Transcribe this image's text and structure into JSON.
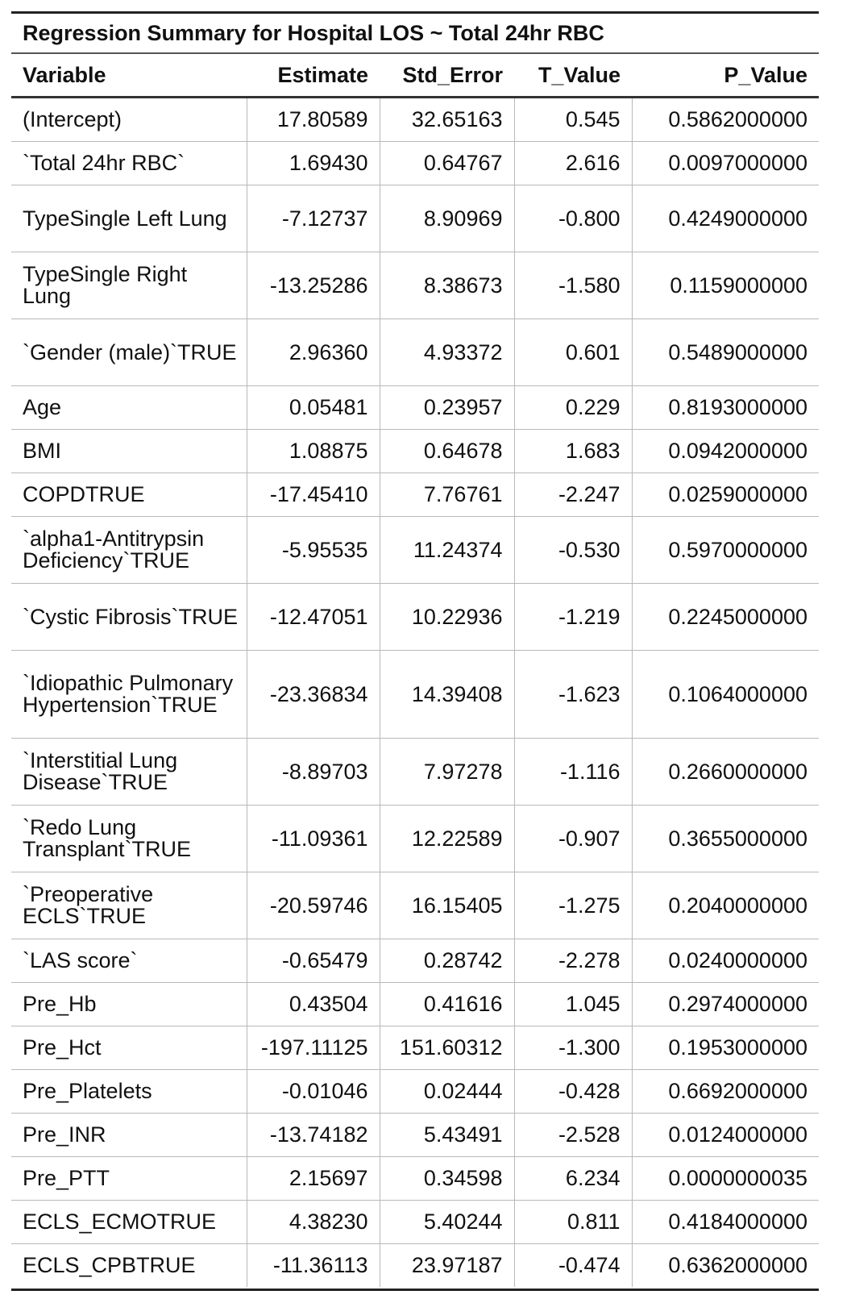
{
  "title": "Regression Summary for Hospital LOS ~ Total 24hr RBC",
  "columns": [
    "Variable",
    "Estimate",
    "Std_Error",
    "T_Value",
    "P_Value"
  ],
  "rows": [
    {
      "variable": "(Intercept)",
      "estimate": "17.80589",
      "std_error": "32.65163",
      "t_value": "0.545",
      "p_value": "0.5862000000"
    },
    {
      "variable": "`Total 24hr RBC`",
      "estimate": "1.69430",
      "std_error": "0.64767",
      "t_value": "2.616",
      "p_value": "0.0097000000"
    },
    {
      "variable": "TypeSingle Left Lung",
      "estimate": "-7.12737",
      "std_error": "8.90969",
      "t_value": "-0.800",
      "p_value": "0.4249000000"
    },
    {
      "variable": "TypeSingle Right Lung",
      "estimate": "-13.25286",
      "std_error": "8.38673",
      "t_value": "-1.580",
      "p_value": "0.1159000000"
    },
    {
      "variable": "`Gender (male)`TRUE",
      "estimate": "2.96360",
      "std_error": "4.93372",
      "t_value": "0.601",
      "p_value": "0.5489000000"
    },
    {
      "variable": "Age",
      "estimate": "0.05481",
      "std_error": "0.23957",
      "t_value": "0.229",
      "p_value": "0.8193000000"
    },
    {
      "variable": "BMI",
      "estimate": "1.08875",
      "std_error": "0.64678",
      "t_value": "1.683",
      "p_value": "0.0942000000"
    },
    {
      "variable": "COPDTRUE",
      "estimate": "-17.45410",
      "std_error": "7.76761",
      "t_value": "-2.247",
      "p_value": "0.0259000000"
    },
    {
      "variable": "`alpha1-Antitrypsin Deficiency`TRUE",
      "estimate": "-5.95535",
      "std_error": "11.24374",
      "t_value": "-0.530",
      "p_value": "0.5970000000"
    },
    {
      "variable": "`Cystic Fibrosis`TRUE",
      "estimate": "-12.47051",
      "std_error": "10.22936",
      "t_value": "-1.219",
      "p_value": "0.2245000000"
    },
    {
      "variable": "`Idiopathic Pulmonary Hypertension`TRUE",
      "estimate": "-23.36834",
      "std_error": "14.39408",
      "t_value": "-1.623",
      "p_value": "0.1064000000"
    },
    {
      "variable": "`Interstitial Lung Disease`TRUE",
      "estimate": "-8.89703",
      "std_error": "7.97278",
      "t_value": "-1.116",
      "p_value": "0.2660000000"
    },
    {
      "variable": "`Redo Lung Transplant`TRUE",
      "estimate": "-11.09361",
      "std_error": "12.22589",
      "t_value": "-0.907",
      "p_value": "0.3655000000"
    },
    {
      "variable": "`Preoperative ECLS`TRUE",
      "estimate": "-20.59746",
      "std_error": "16.15405",
      "t_value": "-1.275",
      "p_value": "0.2040000000"
    },
    {
      "variable": "`LAS score`",
      "estimate": "-0.65479",
      "std_error": "0.28742",
      "t_value": "-2.278",
      "p_value": "0.0240000000"
    },
    {
      "variable": "Pre_Hb",
      "estimate": "0.43504",
      "std_error": "0.41616",
      "t_value": "1.045",
      "p_value": "0.2974000000"
    },
    {
      "variable": "Pre_Hct",
      "estimate": "-197.11125",
      "std_error": "151.60312",
      "t_value": "-1.300",
      "p_value": "0.1953000000"
    },
    {
      "variable": "Pre_Platelets",
      "estimate": "-0.01046",
      "std_error": "0.02444",
      "t_value": "-0.428",
      "p_value": "0.6692000000"
    },
    {
      "variable": "Pre_INR",
      "estimate": "-13.74182",
      "std_error": "5.43491",
      "t_value": "-2.528",
      "p_value": "0.0124000000"
    },
    {
      "variable": "Pre_PTT",
      "estimate": "2.15697",
      "std_error": "0.34598",
      "t_value": "6.234",
      "p_value": "0.0000000035"
    },
    {
      "variable": "ECLS_ECMOTRUE",
      "estimate": "4.38230",
      "std_error": "5.40244",
      "t_value": "0.811",
      "p_value": "0.4184000000"
    },
    {
      "variable": "ECLS_CPBTRUE",
      "estimate": "-11.36113",
      "std_error": "23.97187",
      "t_value": "-0.474",
      "p_value": "0.6362000000"
    }
  ]
}
